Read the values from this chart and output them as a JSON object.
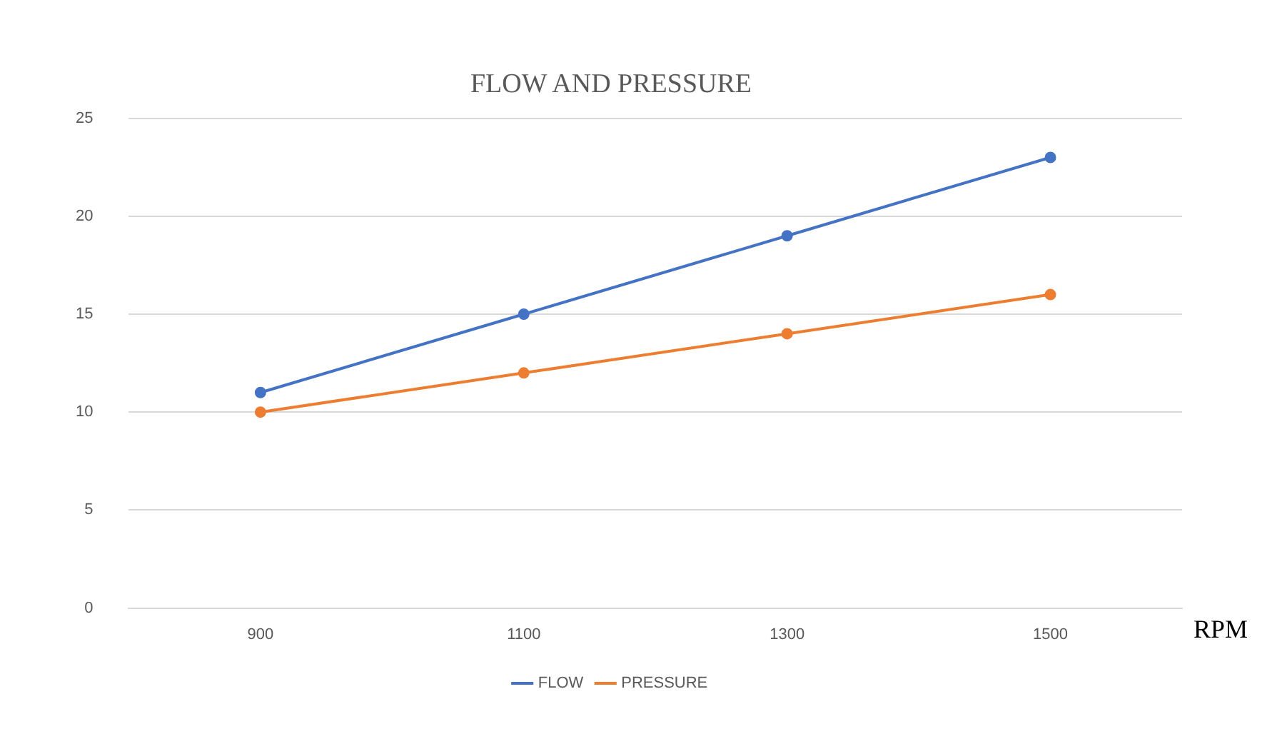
{
  "chart_data": {
    "type": "line",
    "title": "FLOW AND PRESSURE",
    "xlabel": "RPM",
    "categories": [
      "900",
      "1100",
      "1300",
      "1500"
    ],
    "series": [
      {
        "name": "FLOW",
        "color": "#4472c4",
        "values": [
          11,
          15,
          19,
          23
        ]
      },
      {
        "name": "PRESSURE",
        "color": "#ed7d31",
        "values": [
          10,
          12,
          14,
          16
        ]
      }
    ],
    "ylim": [
      0,
      25
    ],
    "yticks": [
      0,
      5,
      10,
      15,
      20,
      25
    ],
    "grid": "y",
    "legend": "bottom",
    "marker": "circle",
    "line_style": "solid"
  }
}
